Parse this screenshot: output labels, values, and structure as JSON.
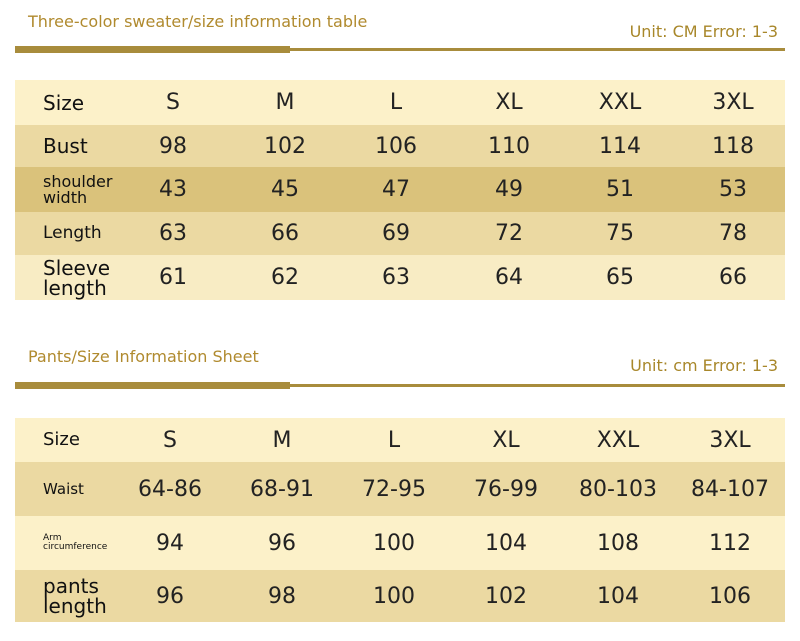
{
  "tables": [
    {
      "title": "Three-color sweater/size information table",
      "unit": "Unit: CM Error: 1-3",
      "header": [
        "Size",
        "S",
        "M",
        "L",
        "XL",
        "XXL",
        "3XL"
      ],
      "rows": [
        [
          "Bust",
          98,
          102,
          106,
          110,
          114,
          118
        ],
        [
          "shoulder width",
          43,
          45,
          47,
          49,
          51,
          53
        ],
        [
          "Length",
          63,
          66,
          69,
          72,
          75,
          78
        ],
        [
          "Sleeve length",
          61,
          62,
          63,
          64,
          65,
          66
        ]
      ]
    },
    {
      "title": "Pants/Size Information Sheet",
      "unit": "Unit: cm Error: 1-3",
      "header": [
        "Size",
        "S",
        "M",
        "L",
        "XL",
        "XXL",
        "3XL"
      ],
      "rows": [
        [
          "Waist",
          "64-86",
          "68-91",
          "72-95",
          "76-99",
          "80-103",
          "84-107"
        ],
        [
          "Arm circumference",
          94,
          96,
          100,
          104,
          108,
          112
        ],
        [
          "pants length",
          96,
          98,
          100,
          102,
          104,
          106
        ]
      ]
    }
  ]
}
